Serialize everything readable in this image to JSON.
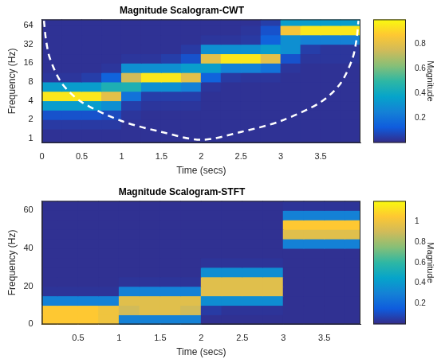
{
  "chart_data": [
    {
      "type": "heatmap",
      "title": "Magnitude Scalogram-CWT",
      "x_label": "Time (secs)",
      "y_label": "Frequency (Hz)",
      "xlim": [
        0,
        4
      ],
      "xticks": [
        0,
        0.5,
        1,
        1.5,
        2,
        2.5,
        3,
        3.5
      ],
      "ylim": [
        0.85,
        80
      ],
      "yticks": [
        1,
        2,
        4,
        8,
        16,
        32,
        64
      ],
      "log": "y",
      "grid": false,
      "x_edges": [
        0,
        0.25,
        0.5,
        0.75,
        1,
        1.25,
        1.5,
        1.75,
        2,
        2.25,
        2.5,
        2.75,
        3,
        3.25,
        3.5,
        3.75,
        4
      ],
      "y_edges": [
        0.85,
        1.41,
        2,
        2.83,
        4,
        5.66,
        8,
        11.3,
        16,
        22.6,
        32,
        45.3,
        64,
        80
      ],
      "z": [
        [
          0.02,
          0.02,
          0.02,
          0.02,
          0.02,
          0.02,
          0.02,
          0.02,
          0.02,
          0.02,
          0.02,
          0.02,
          0.02,
          0.02,
          0.02,
          0.02
        ],
        [
          0.04,
          0.04,
          0.04,
          0.04,
          0.02,
          0.02,
          0.02,
          0.02,
          0.02,
          0.02,
          0.02,
          0.02,
          0.02,
          0.02,
          0.02,
          0.02
        ],
        [
          0.1,
          0.1,
          0.1,
          0.08,
          0.03,
          0.02,
          0.02,
          0.02,
          0.02,
          0.02,
          0.02,
          0.02,
          0.02,
          0.02,
          0.02,
          0.02
        ],
        [
          0.35,
          0.35,
          0.35,
          0.3,
          0.05,
          0.03,
          0.03,
          0.03,
          0.02,
          0.02,
          0.02,
          0.02,
          0.02,
          0.02,
          0.02,
          0.02
        ],
        [
          0.95,
          0.95,
          0.95,
          0.8,
          0.2,
          0.05,
          0.05,
          0.05,
          0.02,
          0.02,
          0.02,
          0.02,
          0.02,
          0.02,
          0.02,
          0.02
        ],
        [
          0.35,
          0.35,
          0.35,
          0.45,
          0.45,
          0.3,
          0.3,
          0.25,
          0.03,
          0.02,
          0.02,
          0.02,
          0.02,
          0.02,
          0.02,
          0.02
        ],
        [
          0.03,
          0.03,
          0.05,
          0.15,
          0.75,
          0.95,
          0.95,
          0.8,
          0.15,
          0.04,
          0.03,
          0.03,
          0.02,
          0.02,
          0.02,
          0.02
        ],
        [
          0.02,
          0.02,
          0.02,
          0.03,
          0.3,
          0.3,
          0.3,
          0.35,
          0.35,
          0.25,
          0.25,
          0.2,
          0.03,
          0.02,
          0.02,
          0.02
        ],
        [
          0.02,
          0.02,
          0.02,
          0.02,
          0.03,
          0.03,
          0.05,
          0.1,
          0.8,
          0.95,
          0.95,
          0.8,
          0.1,
          0.03,
          0.03,
          0.03
        ],
        [
          0.02,
          0.02,
          0.02,
          0.02,
          0.02,
          0.02,
          0.02,
          0.04,
          0.3,
          0.3,
          0.3,
          0.35,
          0.3,
          0.05,
          0.03,
          0.03
        ],
        [
          0.02,
          0.02,
          0.02,
          0.02,
          0.02,
          0.02,
          0.02,
          0.02,
          0.03,
          0.03,
          0.04,
          0.15,
          0.3,
          0.25,
          0.25,
          0.25
        ],
        [
          0.02,
          0.02,
          0.02,
          0.02,
          0.02,
          0.02,
          0.02,
          0.02,
          0.02,
          0.02,
          0.03,
          0.1,
          0.85,
          0.95,
          0.95,
          0.95
        ],
        [
          0.02,
          0.02,
          0.02,
          0.02,
          0.02,
          0.02,
          0.02,
          0.02,
          0.02,
          0.02,
          0.02,
          0.05,
          0.35,
          0.35,
          0.35,
          0.35
        ]
      ],
      "colorbar": {
        "label": "Magnitude",
        "range": [
          0,
          1
        ],
        "ticks": [
          0.2,
          0.4,
          0.6,
          0.8
        ]
      },
      "coi": {
        "x": [
          0.025,
          0.05,
          0.1,
          0.25,
          0.5,
          1,
          1.5,
          2,
          2.5,
          3,
          3.5,
          3.75,
          3.9,
          3.95,
          3.975
        ],
        "y": [
          76,
          38,
          19,
          7.6,
          3.8,
          1.9,
          1.27,
          0.95,
          1.27,
          1.9,
          3.8,
          7.6,
          19,
          38,
          76
        ],
        "color": "#ffffff",
        "line_style": "dashed"
      }
    },
    {
      "type": "heatmap",
      "title": "Magnitude Scalogram-STFT",
      "x_label": "Time (secs)",
      "y_label": "Frequency (Hz)",
      "xlim": [
        0.06,
        3.94
      ],
      "xticks": [
        0.5,
        1,
        1.5,
        2,
        2.5,
        3,
        3.5
      ],
      "ylim": [
        0,
        65
      ],
      "yticks": [
        0,
        20,
        40,
        60
      ],
      "grid": false,
      "x_edges": [
        0.06,
        0.25,
        0.5,
        0.75,
        1,
        1.25,
        1.5,
        1.75,
        2,
        2.25,
        2.5,
        2.75,
        3,
        3.25,
        3.5,
        3.75,
        3.94
      ],
      "y_edges": [
        0,
        5,
        10,
        15,
        20,
        25,
        30,
        35,
        40,
        45,
        50,
        55,
        60,
        65
      ],
      "z": [
        [
          1.05,
          1.05,
          1.05,
          1.0,
          0.3,
          0.3,
          0.3,
          0.3,
          0.02,
          0.02,
          0.02,
          0.02,
          0.02,
          0.02,
          0.02,
          0.02
        ],
        [
          1.05,
          1.05,
          1.05,
          1.0,
          0.9,
          0.95,
          0.95,
          0.9,
          0.05,
          0.03,
          0.03,
          0.03,
          0.02,
          0.02,
          0.02,
          0.02
        ],
        [
          0.3,
          0.3,
          0.3,
          0.3,
          0.95,
          0.95,
          0.95,
          0.95,
          0.35,
          0.35,
          0.35,
          0.35,
          0.02,
          0.02,
          0.02,
          0.02
        ],
        [
          0.03,
          0.03,
          0.03,
          0.03,
          0.3,
          0.3,
          0.3,
          0.3,
          0.95,
          0.95,
          0.95,
          0.95,
          0.02,
          0.02,
          0.02,
          0.02
        ],
        [
          0.02,
          0.02,
          0.02,
          0.02,
          0.03,
          0.03,
          0.03,
          0.03,
          0.95,
          0.95,
          0.95,
          0.95,
          0.02,
          0.02,
          0.02,
          0.02
        ],
        [
          0.02,
          0.02,
          0.02,
          0.02,
          0.02,
          0.02,
          0.02,
          0.02,
          0.35,
          0.35,
          0.35,
          0.35,
          0.02,
          0.02,
          0.02,
          0.02
        ],
        [
          0.02,
          0.02,
          0.02,
          0.02,
          0.02,
          0.02,
          0.02,
          0.02,
          0.03,
          0.03,
          0.03,
          0.03,
          0.02,
          0.02,
          0.02,
          0.02
        ],
        [
          0.02,
          0.02,
          0.02,
          0.02,
          0.02,
          0.02,
          0.02,
          0.02,
          0.02,
          0.02,
          0.02,
          0.02,
          0.02,
          0.02,
          0.02,
          0.02
        ],
        [
          0.02,
          0.02,
          0.02,
          0.02,
          0.02,
          0.02,
          0.02,
          0.02,
          0.02,
          0.02,
          0.02,
          0.02,
          0.3,
          0.3,
          0.3,
          0.3
        ],
        [
          0.02,
          0.02,
          0.02,
          0.02,
          0.02,
          0.02,
          0.02,
          0.02,
          0.02,
          0.02,
          0.02,
          0.02,
          0.95,
          0.95,
          0.95,
          0.95
        ],
        [
          0.02,
          0.02,
          0.02,
          0.02,
          0.02,
          0.02,
          0.02,
          0.02,
          0.02,
          0.02,
          0.02,
          0.02,
          1.05,
          1.05,
          1.05,
          1.05
        ],
        [
          0.02,
          0.02,
          0.02,
          0.02,
          0.02,
          0.02,
          0.02,
          0.02,
          0.02,
          0.02,
          0.02,
          0.02,
          0.3,
          0.3,
          0.3,
          0.3
        ],
        [
          0.02,
          0.02,
          0.02,
          0.02,
          0.02,
          0.02,
          0.02,
          0.02,
          0.02,
          0.02,
          0.02,
          0.02,
          0.03,
          0.03,
          0.03,
          0.03
        ]
      ],
      "colorbar": {
        "label": "Magnitude",
        "range": [
          0,
          1.2
        ],
        "ticks": [
          0.2,
          0.4,
          0.6,
          0.8,
          1
        ]
      }
    }
  ]
}
